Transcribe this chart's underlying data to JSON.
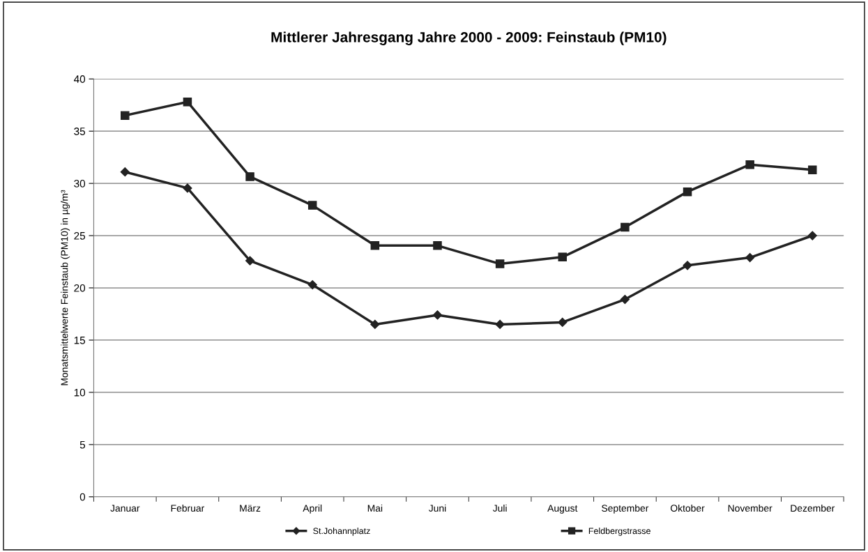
{
  "chart_data": {
    "type": "line",
    "title": "Mittlerer Jahresgang Jahre 2000 - 2009: Feinstaub (PM10)",
    "ylabel": "Monatsmittelwerte Feinstaub (PM10) in µg/m³",
    "categories": [
      "Januar",
      "Februar",
      "März",
      "April",
      "Mai",
      "Juni",
      "Juli",
      "August",
      "September",
      "Oktober",
      "November",
      "Dezember"
    ],
    "series": [
      {
        "name": "St.Johannplatz",
        "color": "#222222",
        "marker": "diamond",
        "values": [
          31.1,
          29.55,
          22.6,
          20.3,
          16.5,
          17.4,
          16.5,
          16.7,
          18.9,
          22.15,
          22.9,
          25.0
        ]
      },
      {
        "name": "Feldbergstrasse",
        "color": "#222222",
        "marker": "square",
        "values": [
          36.5,
          37.8,
          30.65,
          27.9,
          24.05,
          24.05,
          22.3,
          22.95,
          25.8,
          29.2,
          31.8,
          31.3
        ]
      }
    ],
    "ylim": [
      0,
      40
    ],
    "yticks": [
      0,
      5,
      10,
      15,
      20,
      25,
      30,
      35,
      40
    ],
    "grid": "y",
    "legend": "bottom",
    "line_style": "solid"
  }
}
